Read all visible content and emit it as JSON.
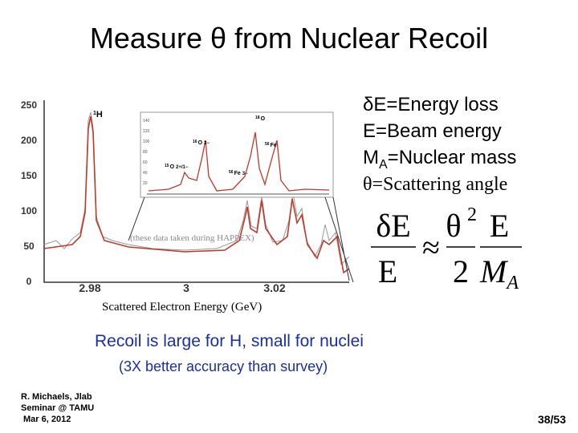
{
  "title": "Measure θ from Nuclear Recoil",
  "definitions": [
    {
      "text": "δE=Energy loss"
    },
    {
      "text": "E=Beam energy"
    },
    {
      "text": "M",
      "sub": "A",
      "after": "=Nuclear mass"
    },
    {
      "text": "θ=Scattering angle"
    }
  ],
  "formula": {
    "lhs_num": "δE",
    "lhs_den": "E",
    "approx": "≈",
    "theta": "θ",
    "power": "2",
    "half_den": "2",
    "rhs_num": "E",
    "rhs_den": "M",
    "rhs_sub": "A"
  },
  "plot": {
    "yticks": [
      "250",
      "200",
      "150",
      "100",
      "50",
      "0"
    ],
    "xticks": [
      "2.98",
      "3",
      "3.02"
    ],
    "xlabel": "Scattered Electron Energy (GeV)",
    "annotation": "(these data taken during HAPPEX)",
    "peak_label": {
      "mass": "1",
      "symbol": "H"
    },
    "inset_yticks": [
      "140",
      "120",
      "100",
      "80",
      "60",
      "40",
      "20"
    ],
    "inset_labels": [
      {
        "mass": "18",
        "symbol": "O"
      },
      {
        "mass": "16",
        "symbol": "O",
        "state": "3−"
      },
      {
        "mass": "15",
        "symbol": "O",
        "state": "2+/1−"
      },
      {
        "mass": "56",
        "symbol": "Fe"
      },
      {
        "mass": "56",
        "symbol": "Fe",
        "state": "3−"
      }
    ]
  },
  "statement": "Recoil is large for H, small for nuclei",
  "substatement": "(3X better accuracy than survey)",
  "footer": [
    "R. Michaels, Jlab",
    "Seminar @ TAMU",
    "Mar 6, 2012"
  ],
  "page_number": "38/53"
}
